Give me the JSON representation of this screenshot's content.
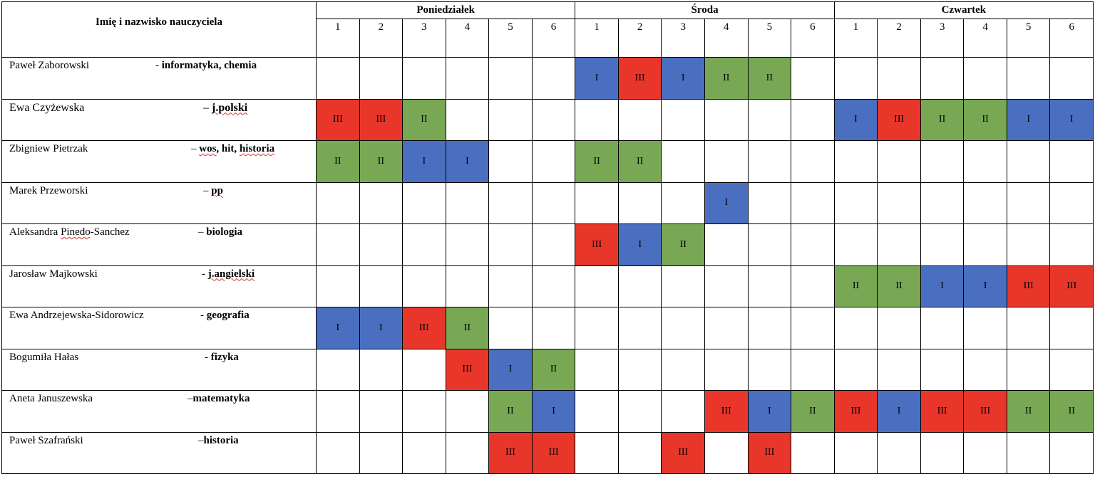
{
  "header": {
    "name_column": "Imię i nazwisko nauczyciela",
    "days": [
      "Poniedziałek",
      "Środa",
      "Czwartek"
    ],
    "periods": [
      "1",
      "2",
      "3",
      "4",
      "5",
      "6"
    ]
  },
  "colors": {
    "I": "#4a6fc1",
    "II": "#78a854",
    "III": "#e8362a"
  },
  "teachers": [
    {
      "name": "Paweł Zaborowski",
      "subject": "- informatyka, chemia",
      "slots": [
        "",
        "",
        "",
        "",
        "",
        "",
        "I",
        "III",
        "I",
        "II",
        "II",
        "",
        "",
        "",
        "",
        "",
        "",
        ""
      ]
    },
    {
      "name": "Ewa Czyżewska",
      "subject": "– j.polski",
      "slots": [
        "III",
        "III",
        "II",
        "",
        "",
        "",
        "",
        "",
        "",
        "",
        "",
        "",
        "I",
        "III",
        "II",
        "II",
        "I",
        "I"
      ]
    },
    {
      "name": "Zbigniew Pietrzak",
      "subject": "– wos, hit, historia",
      "slots": [
        "II",
        "II",
        "I",
        "I",
        "",
        "",
        "II",
        "II",
        "",
        "",
        "",
        "",
        "",
        "",
        "",
        "",
        "",
        ""
      ]
    },
    {
      "name": "Marek Przeworski",
      "subject": "– pp",
      "slots": [
        "",
        "",
        "",
        "",
        "",
        "",
        "",
        "",
        "",
        "I",
        "",
        "",
        "",
        "",
        "",
        "",
        "",
        ""
      ]
    },
    {
      "name": "Aleksandra Pinedo-Sanchez",
      "subject": "– biologia",
      "slots": [
        "",
        "",
        "",
        "",
        "",
        "",
        "III",
        "I",
        "II",
        "",
        "",
        "",
        "",
        "",
        "",
        "",
        "",
        ""
      ]
    },
    {
      "name": "Jarosław Majkowski",
      "subject": "- j.angielski",
      "slots": [
        "",
        "",
        "",
        "",
        "",
        "",
        "",
        "",
        "",
        "",
        "",
        "",
        "II",
        "II",
        "I",
        "I",
        "III",
        "III"
      ]
    },
    {
      "name": "Ewa Andrzejewska-Sidorowicz",
      "subject": "- geografia",
      "slots": [
        "I",
        "I",
        "III",
        "II",
        "",
        "",
        "",
        "",
        "",
        "",
        "",
        "",
        "",
        "",
        "",
        "",
        "",
        ""
      ]
    },
    {
      "name": "Bogumiła Hałas",
      "subject": "- fizyka",
      "slots": [
        "",
        "",
        "",
        "III",
        "I",
        "II",
        "",
        "",
        "",
        "",
        "",
        "",
        "",
        "",
        "",
        "",
        "",
        ""
      ]
    },
    {
      "name": "Aneta Januszewska",
      "subject": "–matematyka",
      "slots": [
        "",
        "",
        "",
        "",
        "II",
        "I",
        "",
        "",
        "",
        "III",
        "I",
        "II",
        "III",
        "I",
        "III",
        "III",
        "II",
        "II"
      ]
    },
    {
      "name": "Paweł Szafrański",
      "subject": "–historia",
      "slots": [
        "",
        "",
        "",
        "",
        "III",
        "III",
        "",
        "",
        "III",
        "",
        "III",
        "",
        "",
        "",
        "",
        "",
        "",
        ""
      ]
    }
  ]
}
